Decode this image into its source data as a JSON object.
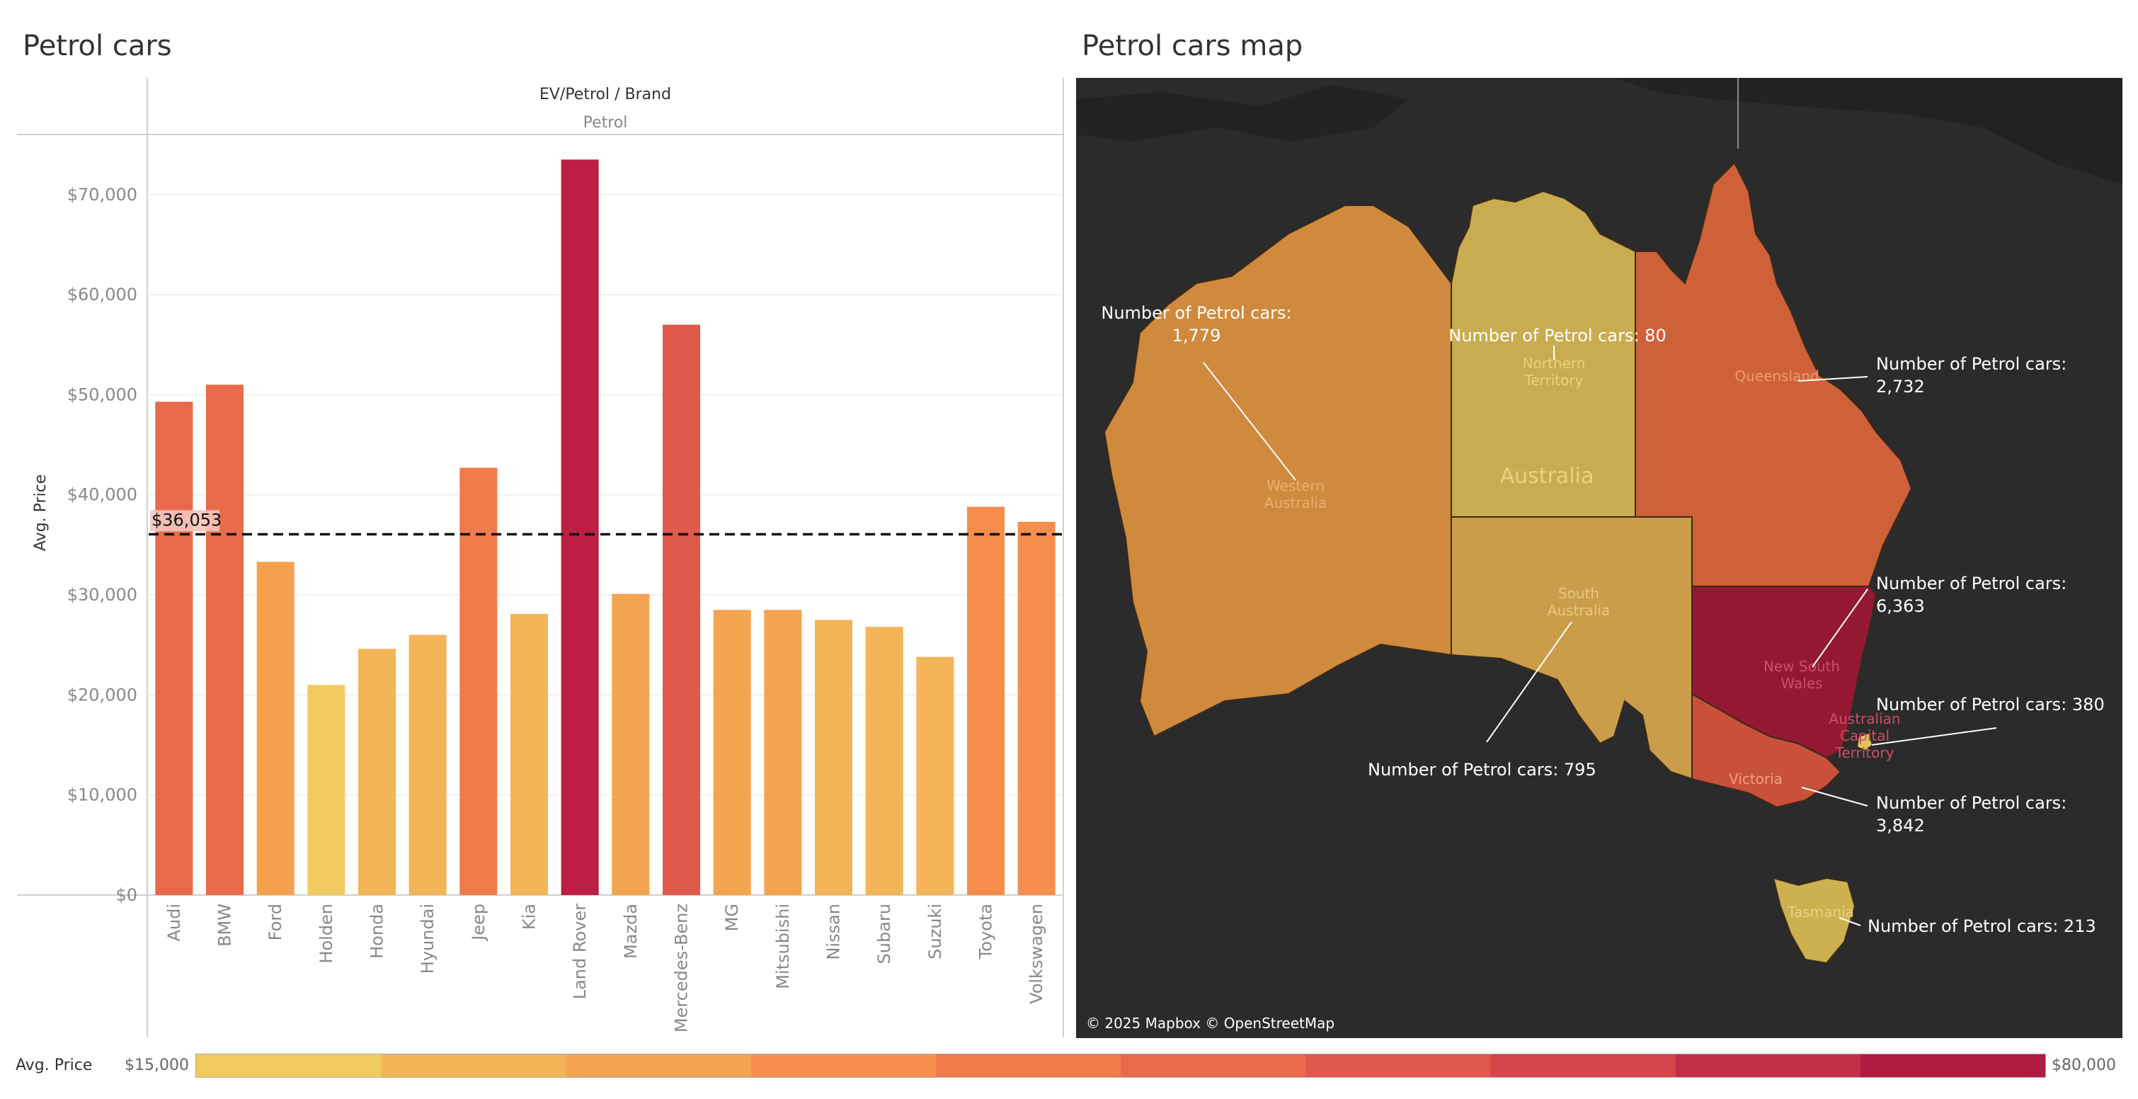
{
  "left_title": "Petrol cars",
  "right_title": "Petrol cars map",
  "header": {
    "group_label": "EV/Petrol  /  Brand",
    "group_value": "Petrol"
  },
  "chart_data": {
    "type": "bar",
    "title": "Petrol cars",
    "ylabel": "Avg. Price",
    "ylim": [
      0,
      76000
    ],
    "yticks": [
      0,
      10000,
      20000,
      30000,
      40000,
      50000,
      60000,
      70000
    ],
    "ytick_labels": [
      "$0",
      "$10,000",
      "$20,000",
      "$30,000",
      "$40,000",
      "$50,000",
      "$60,000",
      "$70,000"
    ],
    "categories": [
      "Audi",
      "BMW",
      "Ford",
      "Holden",
      "Honda",
      "Hyundai",
      "Jeep",
      "Kia",
      "Land Rover",
      "Mazda",
      "Mercedes-Benz",
      "MG",
      "Mitsubishi",
      "Nissan",
      "Subaru",
      "Suzuki",
      "Toyota",
      "Volkswagen"
    ],
    "values": [
      49300,
      51000,
      33300,
      21000,
      24600,
      26000,
      42700,
      28100,
      73500,
      30100,
      57000,
      28500,
      28500,
      27500,
      26800,
      23800,
      38800,
      37300
    ],
    "colors": [
      "#e96a4a",
      "#e86b4b",
      "#f6a04d",
      "#f2cb60",
      "#f4b458",
      "#f4b458",
      "#ef7b4b",
      "#f4b458",
      "#bc1f42",
      "#f4a54f",
      "#e0594a",
      "#f4a54f",
      "#f4a54f",
      "#f4b458",
      "#f4b458",
      "#f4b458",
      "#f78c4c",
      "#f78e4d"
    ],
    "reference_line": {
      "value": 36053,
      "label": "$36,053"
    },
    "grid": true
  },
  "map": {
    "regions": [
      {
        "name": "Western Australia",
        "label": "Western\nAustralia",
        "count": 1779,
        "color": "#d08a3d"
      },
      {
        "name": "Northern Territory",
        "label": "Northern\nTerritory",
        "count": 80,
        "color": "#c9ac4f"
      },
      {
        "name": "Queensland",
        "label": "Queensland",
        "count": 2732,
        "color": "#cf6138"
      },
      {
        "name": "South Australia",
        "label": "South\nAustralia",
        "count": 795,
        "color": "#cb9c4a"
      },
      {
        "name": "New South Wales",
        "label": "New South\nWales",
        "count": 6363,
        "color": "#951833"
      },
      {
        "name": "Victoria",
        "label": "Victoria",
        "count": 3842,
        "color": "#c9513a"
      },
      {
        "name": "Tasmania",
        "label": "Tasmania",
        "count": 213,
        "color": "#cdb150"
      },
      {
        "name": "Australian Capital Territory",
        "label": "Australian\nCapital\nTerritory",
        "count": 380,
        "color": "#e0c65a"
      }
    ],
    "country_label": "Australia",
    "callouts": {
      "wa": "Number of Petrol cars:",
      "wa_value": "1,779",
      "nt": "Number of Petrol cars: 80",
      "qld": "Number of Petrol cars:",
      "qld_value": "2,732",
      "nsw": "Number of Petrol cars:",
      "nsw_value": "6,363",
      "act": "Number of Petrol cars: 380",
      "vic": "Number of Petrol cars:",
      "vic_value": "3,842",
      "sa": "Number of Petrol cars: 795",
      "tas": "Number of Petrol cars: 213"
    },
    "attribution": "© 2025 Mapbox © OpenStreetMap"
  },
  "legend": {
    "title": "Avg. Price",
    "min_label": "$15,000",
    "max_label": "$80,000",
    "colors": [
      "#f2cb60",
      "#f4b458",
      "#f4a54f",
      "#f78e4d",
      "#ef7b4b",
      "#e96a4a",
      "#e0594a",
      "#d4444a",
      "#c02f46",
      "#b21b40"
    ]
  }
}
